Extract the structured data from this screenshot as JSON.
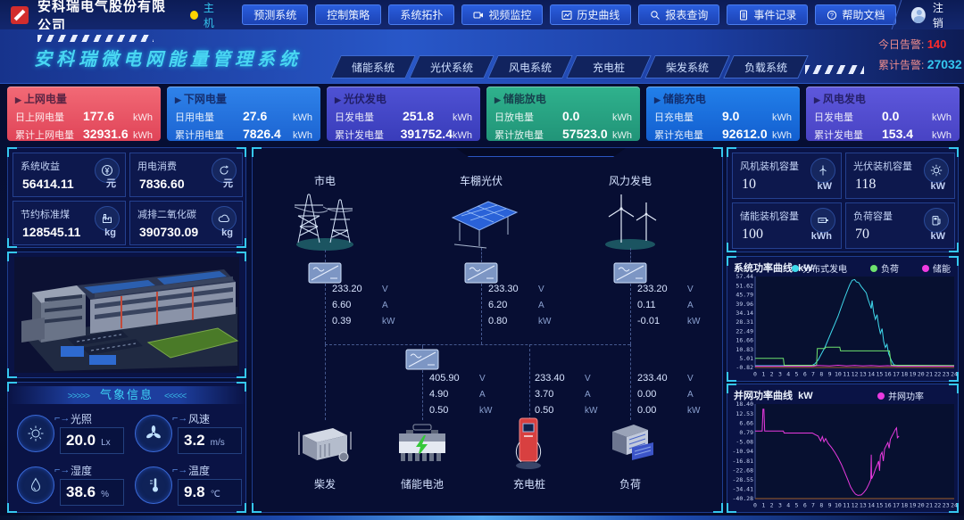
{
  "colors": {
    "accent_cyan": "#35c8f0",
    "alarm_red": "#ff2a2a",
    "host_dot": "#ffd400",
    "panel_border": "#1e3d8f"
  },
  "topbar": {
    "company": "安科瑞电气股份有限公司",
    "host": "主机",
    "nav": [
      {
        "label": "预测系统"
      },
      {
        "label": "控制策略"
      },
      {
        "label": "系统拓扑"
      },
      {
        "label": "视频监控"
      },
      {
        "label": "历史曲线"
      },
      {
        "label": "报表查询"
      },
      {
        "label": "事件记录"
      },
      {
        "label": "帮助文档"
      }
    ],
    "logout": "注销"
  },
  "header": {
    "title": "安科瑞微电网能量管理系统",
    "tabs": [
      "储能系统",
      "光伏系统",
      "风电系统",
      "充电桩",
      "柴发系统",
      "负载系统"
    ],
    "alarm_today_label": "今日告警:",
    "alarm_today": "140",
    "alarm_total_label": "累计告警:",
    "alarm_total": "27032"
  },
  "stat_cards": [
    {
      "title": "上网电量",
      "color_top": "#f26a76",
      "color_bottom": "#e04458",
      "rows": [
        {
          "label": "日上网电量",
          "value": "177.6",
          "unit": "kWh"
        },
        {
          "label": "累计上网电量",
          "value": "32931.6",
          "unit": "kWh"
        }
      ]
    },
    {
      "title": "下网电量",
      "color_top": "#2f83ea",
      "color_bottom": "#1c64d2",
      "rows": [
        {
          "label": "日用电量",
          "value": "27.6",
          "unit": "kWh"
        },
        {
          "label": "累计用电量",
          "value": "7826.4",
          "unit": "kWh"
        }
      ]
    },
    {
      "title": "光伏发电",
      "color_top": "#4f52d4",
      "color_bottom": "#393cba",
      "rows": [
        {
          "label": "日发电量",
          "value": "251.8",
          "unit": "kWh"
        },
        {
          "label": "累计发电量",
          "value": "391752.4",
          "unit": "kWh"
        }
      ]
    },
    {
      "title": "储能放电",
      "color_top": "#2fb28d",
      "color_bottom": "#219478",
      "rows": [
        {
          "label": "日放电量",
          "value": "0.0",
          "unit": "kWh"
        },
        {
          "label": "累计放电量",
          "value": "57523.0",
          "unit": "kWh"
        }
      ]
    },
    {
      "title": "储能充电",
      "color_top": "#2280ea",
      "color_bottom": "#135fd0",
      "rows": [
        {
          "label": "日充电量",
          "value": "9.0",
          "unit": "kWh"
        },
        {
          "label": "累计充电量",
          "value": "92612.0",
          "unit": "kWh"
        }
      ]
    },
    {
      "title": "风电发电",
      "color_top": "#5e58dc",
      "color_bottom": "#4843c4",
      "rows": [
        {
          "label": "日发电量",
          "value": "0.0",
          "unit": "kWh"
        },
        {
          "label": "累计发电量",
          "value": "153.4",
          "unit": "kWh"
        }
      ]
    }
  ],
  "left": {
    "benefits": [
      {
        "label": "系统收益",
        "value": "56414.11",
        "unit": "元"
      },
      {
        "label": "用电消费",
        "value": "7836.60",
        "unit": "元"
      },
      {
        "label": "节约标准煤",
        "value": "128545.11",
        "unit": "kg"
      },
      {
        "label": "减排二氧化碳",
        "value": "390730.09",
        "unit": "kg"
      }
    ],
    "weather": {
      "title": "气象信息",
      "items": [
        {
          "label": "光照",
          "value": "20.0",
          "unit": "Lx"
        },
        {
          "label": "风速",
          "value": "3.2",
          "unit": "m/s"
        },
        {
          "label": "湿度",
          "value": "38.6",
          "unit": "%"
        },
        {
          "label": "温度",
          "value": "9.8",
          "unit": "℃"
        }
      ]
    }
  },
  "topology": {
    "units": {
      "v": "V",
      "a": "A",
      "kw": "kW"
    },
    "sources": [
      {
        "name": "市电",
        "v": "233.20",
        "a": "6.60",
        "kw": "0.39"
      },
      {
        "name": "车棚光伏",
        "v": "233.30",
        "a": "6.20",
        "kw": "0.80"
      },
      {
        "name": "风力发电",
        "v": "233.20",
        "a": "0.11",
        "kw": "-0.01"
      }
    ],
    "loads": [
      {
        "name": "柴发"
      },
      {
        "name": "储能电池",
        "v": "405.90",
        "a": "4.90",
        "kw": "0.50"
      },
      {
        "name": "充电桩",
        "v": "233.40",
        "a": "3.70",
        "kw": "0.50"
      },
      {
        "name": "负荷",
        "v": "233.40",
        "a": "0.00",
        "kw": "0.00"
      }
    ]
  },
  "right": {
    "capacity": [
      {
        "label": "风机装机容量",
        "value": "10",
        "unit": "kW"
      },
      {
        "label": "光伏装机容量",
        "value": "118",
        "unit": "kW"
      },
      {
        "label": "储能装机容量",
        "value": "100",
        "unit": "kWh"
      },
      {
        "label": "负荷容量",
        "value": "70",
        "unit": "kW"
      }
    ]
  },
  "chart_data": [
    {
      "type": "line",
      "title": "系统功率曲线",
      "unit": "kW",
      "x_range": [
        0,
        24
      ],
      "y_range": [
        -0.82,
        57.44
      ],
      "yticks": [
        "57.44",
        "51.62",
        "45.79",
        "39.96",
        "34.14",
        "28.31",
        "22.49",
        "16.66",
        "10.83",
        "5.01",
        "-0.82"
      ],
      "legend_position": "top",
      "grid": false,
      "series": [
        {
          "name": "分布式发电",
          "color": "#3fd9ec",
          "points": [
            [
              0,
              0.3
            ],
            [
              6.8,
              0.3
            ],
            [
              7.2,
              1.5
            ],
            [
              7.6,
              4
            ],
            [
              8,
              8
            ],
            [
              8.4,
              12
            ],
            [
              8.8,
              17
            ],
            [
              9.2,
              22
            ],
            [
              9.6,
              27
            ],
            [
              10,
              32
            ],
            [
              10.4,
              38
            ],
            [
              10.8,
              44
            ],
            [
              11.1,
              48
            ],
            [
              11.4,
              52
            ],
            [
              11.7,
              55
            ],
            [
              12,
              55.5
            ],
            [
              12.2,
              54
            ],
            [
              12.5,
              53.5
            ],
            [
              12.8,
              51
            ],
            [
              13.1,
              49
            ],
            [
              13.4,
              47
            ],
            [
              13.6,
              43
            ],
            [
              13.8,
              40
            ],
            [
              14,
              37
            ],
            [
              14.1,
              42
            ],
            [
              14.3,
              34
            ],
            [
              14.5,
              30
            ],
            [
              14.7,
              33
            ],
            [
              14.9,
              26
            ],
            [
              15.1,
              21
            ],
            [
              15.3,
              24
            ],
            [
              15.5,
              16
            ],
            [
              15.7,
              12
            ],
            [
              15.9,
              14
            ],
            [
              16.1,
              8
            ],
            [
              16.4,
              4
            ],
            [
              16.7,
              1
            ],
            [
              17.2,
              0.3
            ],
            [
              24,
              0.3
            ]
          ]
        },
        {
          "name": "负荷",
          "color": "#6ee26e",
          "points": [
            [
              0,
              5
            ],
            [
              3.4,
              5
            ],
            [
              3.5,
              0.6
            ],
            [
              7.4,
              0.6
            ],
            [
              7.5,
              11.3
            ],
            [
              8.4,
              11.3
            ],
            [
              8.5,
              12.2
            ],
            [
              10.2,
              12.2
            ],
            [
              10.3,
              9.8
            ],
            [
              16.2,
              9.8
            ],
            [
              16.4,
              0.6
            ],
            [
              24,
              0.5
            ]
          ]
        },
        {
          "name": "储能",
          "color": "#ef3be0",
          "points": [
            [
              0,
              0
            ],
            [
              7,
              0
            ],
            [
              7.5,
              0.5
            ],
            [
              9,
              0.2
            ],
            [
              10,
              0.6
            ],
            [
              11,
              0.2
            ],
            [
              12,
              0.5
            ],
            [
              13,
              0.2
            ],
            [
              14,
              0.4
            ],
            [
              15,
              0.1
            ],
            [
              16,
              0.3
            ],
            [
              17,
              0
            ],
            [
              24,
              0
            ]
          ]
        }
      ]
    },
    {
      "type": "line",
      "title": "并网功率曲线",
      "unit": "kW",
      "x_range": [
        0,
        24
      ],
      "y_range": [
        -40.28,
        18.4
      ],
      "yticks": [
        "18.40",
        "12.53",
        "6.66",
        "0.79",
        "-5.08",
        "-10.94",
        "-16.81",
        "-22.68",
        "-28.55",
        "-34.41",
        "-40.28"
      ],
      "legend_position": "top-right",
      "grid": false,
      "series": [
        {
          "name": "并网功率",
          "color": "#e93ae0",
          "points": [
            [
              0,
              1.6
            ],
            [
              0.85,
              1.6
            ],
            [
              0.95,
              15.2
            ],
            [
              1.05,
              15.2
            ],
            [
              1.15,
              1.6
            ],
            [
              3.4,
              1.6
            ],
            [
              3.5,
              0.4
            ],
            [
              6.9,
              0.4
            ],
            [
              7.2,
              -0.5
            ],
            [
              7.6,
              -1.5
            ],
            [
              7.9,
              -4.5
            ],
            [
              8.1,
              -1.8
            ],
            [
              8.3,
              -5
            ],
            [
              8.5,
              -3
            ],
            [
              8.8,
              -6
            ],
            [
              9.2,
              -8.5
            ],
            [
              9.6,
              -11.5
            ],
            [
              10,
              -15
            ],
            [
              10.4,
              -19
            ],
            [
              10.8,
              -24
            ],
            [
              11.2,
              -29
            ],
            [
              11.5,
              -33
            ],
            [
              11.8,
              -35.5
            ],
            [
              12.1,
              -37.5
            ],
            [
              12.4,
              -38.3
            ],
            [
              12.8,
              -38
            ],
            [
              13.1,
              -36.5
            ],
            [
              13.4,
              -34.5
            ],
            [
              13.7,
              -31.5
            ],
            [
              13.95,
              -28.5
            ],
            [
              14,
              -13
            ],
            [
              14.05,
              -28
            ],
            [
              14.3,
              -25
            ],
            [
              14.5,
              -22
            ],
            [
              14.7,
              -19.5
            ],
            [
              14.9,
              -17
            ],
            [
              15,
              -23
            ],
            [
              15.1,
              -13.5
            ],
            [
              15.3,
              -11.5
            ],
            [
              15.45,
              -17
            ],
            [
              15.6,
              -9.5
            ],
            [
              15.8,
              -7.5
            ],
            [
              16,
              -5.5
            ],
            [
              16.15,
              -9
            ],
            [
              16.3,
              -3.5
            ],
            [
              16.5,
              -1.5
            ],
            [
              16.7,
              0.5
            ],
            [
              16.9,
              2.5
            ],
            [
              17.05,
              3.6
            ],
            [
              17.15,
              -2.5
            ],
            [
              17.35,
              -1.5
            ]
          ]
        }
      ]
    }
  ]
}
